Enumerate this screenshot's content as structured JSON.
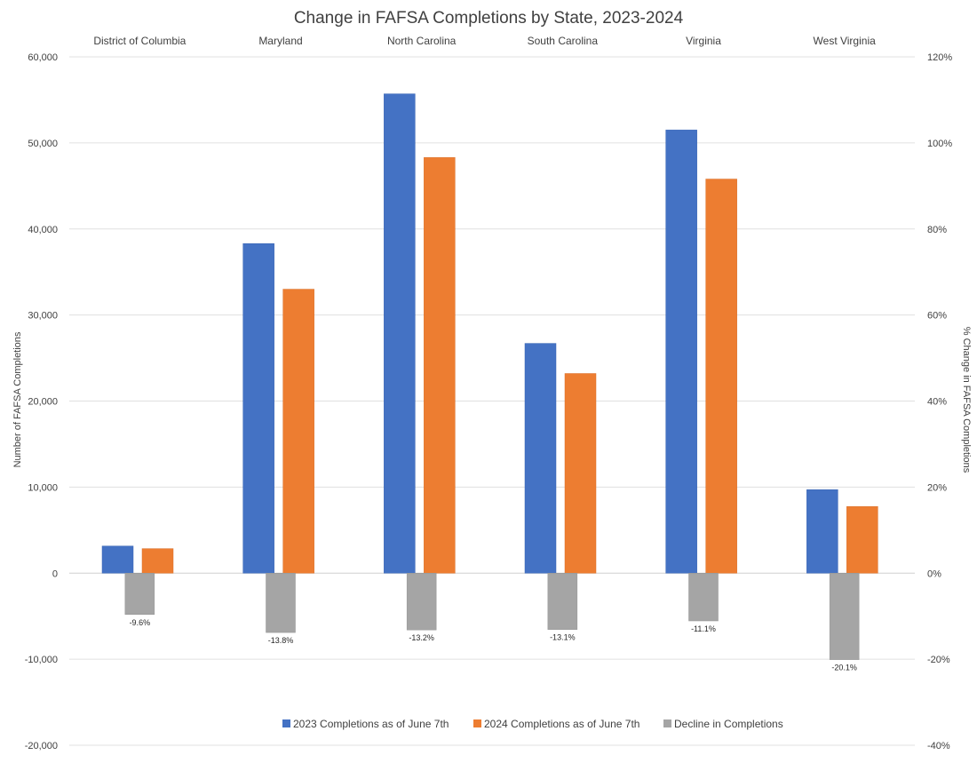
{
  "chart_data": {
    "type": "bar",
    "title": "Change in FAFSA Completions by State, 2023-2024",
    "categories": [
      "District of Columbia",
      "Maryland",
      "North Carolina",
      "South Carolina",
      "Virginia",
      "West Virginia"
    ],
    "series": [
      {
        "name": "2023 Completions as of June 7th",
        "axis": "left",
        "color": "#4472c4",
        "values": [
          3150,
          38300,
          55700,
          26700,
          51500,
          9700
        ]
      },
      {
        "name": "2024 Completions as of June 7th",
        "axis": "left",
        "color": "#ed7d31",
        "values": [
          2850,
          33000,
          48300,
          23200,
          45800,
          7750
        ]
      },
      {
        "name": "Decline in Completions",
        "axis": "right",
        "color": "#a5a5a5",
        "values": [
          -9.6,
          -13.8,
          -13.2,
          -13.1,
          -11.1,
          -20.1
        ],
        "labels": [
          "-9.6%",
          "-13.8%",
          "-13.2%",
          "-13.1%",
          "-11.1%",
          "-20.1%"
        ]
      }
    ],
    "ylabel": "Number of FAFSA Completions",
    "y2label": "% Change in FAFSA Completions",
    "ylim": [
      -20000,
      60000
    ],
    "y2lim": [
      -40,
      120
    ],
    "yticks": [
      "-20,000",
      "-10,000",
      "0",
      "10,000",
      "20,000",
      "30,000",
      "40,000",
      "50,000",
      "60,000"
    ],
    "y2ticks": [
      "-40%",
      "-20%",
      "0%",
      "20%",
      "40%",
      "60%",
      "80%",
      "100%",
      "120%"
    ],
    "category_labels_position": "top",
    "grid": true,
    "legend": "bottom"
  }
}
